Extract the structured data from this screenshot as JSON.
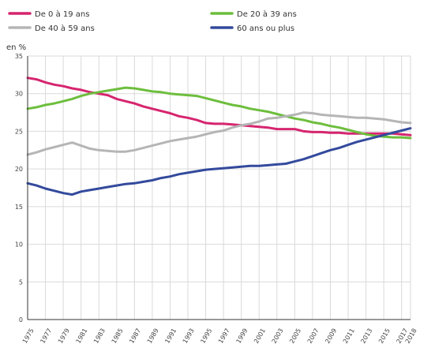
{
  "chart_data": {
    "type": "line",
    "ylabel": "en %",
    "ylim": [
      0,
      35
    ],
    "y_ticks": [
      0,
      5,
      10,
      15,
      20,
      25,
      30,
      35
    ],
    "x_ticks": [
      1975,
      1977,
      1979,
      1981,
      1983,
      1985,
      1987,
      1989,
      1991,
      1993,
      1995,
      1997,
      1999,
      2001,
      2003,
      2005,
      2007,
      2009,
      2011,
      2013,
      2015,
      2017,
      2018
    ],
    "x_range": [
      1975,
      2018
    ],
    "grid": true,
    "legend_position": "top",
    "x": [
      1975,
      1976,
      1977,
      1978,
      1979,
      1980,
      1981,
      1982,
      1983,
      1984,
      1985,
      1986,
      1987,
      1988,
      1989,
      1990,
      1991,
      1992,
      1993,
      1994,
      1995,
      1996,
      1997,
      1998,
      1999,
      2000,
      2001,
      2002,
      2003,
      2004,
      2005,
      2006,
      2007,
      2008,
      2009,
      2010,
      2011,
      2012,
      2013,
      2014,
      2015,
      2016,
      2017,
      2018
    ],
    "series": [
      {
        "name": "De 0 à 19 ans",
        "color": "#d6256f",
        "values": [
          32.1,
          31.9,
          31.5,
          31.2,
          31.0,
          30.7,
          30.5,
          30.2,
          30.0,
          29.8,
          29.3,
          29.0,
          28.7,
          28.3,
          28.0,
          27.7,
          27.4,
          27.0,
          26.8,
          26.5,
          26.1,
          26.0,
          26.0,
          25.9,
          25.8,
          25.7,
          25.6,
          25.5,
          25.3,
          25.3,
          25.3,
          25.0,
          24.9,
          24.9,
          24.8,
          24.8,
          24.7,
          24.7,
          24.7,
          24.7,
          24.7,
          24.7,
          24.6,
          24.5
        ]
      },
      {
        "name": "De 20 à 39 ans",
        "color": "#6dbe3d",
        "values": [
          28.0,
          28.2,
          28.5,
          28.7,
          29.0,
          29.3,
          29.7,
          30.0,
          30.2,
          30.4,
          30.6,
          30.8,
          30.7,
          30.5,
          30.3,
          30.2,
          30.0,
          29.9,
          29.8,
          29.7,
          29.4,
          29.1,
          28.8,
          28.5,
          28.3,
          28.0,
          27.8,
          27.6,
          27.3,
          27.0,
          26.7,
          26.5,
          26.2,
          26.0,
          25.7,
          25.5,
          25.2,
          24.9,
          24.6,
          24.4,
          24.3,
          24.2,
          24.2,
          24.1
        ]
      },
      {
        "name": "De 40 à 59 ans",
        "color": "#b5b5b5",
        "values": [
          21.9,
          22.2,
          22.6,
          22.9,
          23.2,
          23.5,
          23.1,
          22.7,
          22.5,
          22.4,
          22.3,
          22.3,
          22.5,
          22.8,
          23.1,
          23.4,
          23.7,
          23.9,
          24.1,
          24.3,
          24.6,
          24.9,
          25.1,
          25.5,
          25.8,
          26.0,
          26.3,
          26.7,
          26.8,
          27.0,
          27.2,
          27.5,
          27.4,
          27.2,
          27.1,
          27.0,
          26.9,
          26.8,
          26.8,
          26.7,
          26.6,
          26.4,
          26.2,
          26.1
        ]
      },
      {
        "name": "60 ans ou plus",
        "color": "#334a9c",
        "values": [
          18.1,
          17.8,
          17.4,
          17.1,
          16.8,
          16.6,
          17.0,
          17.2,
          17.4,
          17.6,
          17.8,
          18.0,
          18.1,
          18.3,
          18.5,
          18.8,
          19.0,
          19.3,
          19.5,
          19.7,
          19.9,
          20.0,
          20.1,
          20.2,
          20.3,
          20.4,
          20.4,
          20.5,
          20.6,
          20.7,
          21.0,
          21.3,
          21.7,
          22.1,
          22.5,
          22.8,
          23.2,
          23.6,
          23.9,
          24.2,
          24.5,
          24.8,
          25.1,
          25.4
        ]
      }
    ]
  }
}
